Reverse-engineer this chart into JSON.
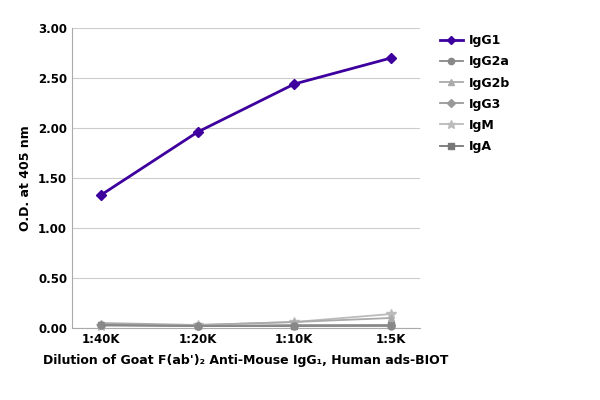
{
  "x_labels": [
    "1:40K",
    "1:20K",
    "1:10K",
    "1:5K"
  ],
  "x_positions": [
    0,
    1,
    2,
    3
  ],
  "series": {
    "IgG1": {
      "values": [
        1.33,
        1.96,
        2.44,
        2.7
      ],
      "color": "#3d009e",
      "marker": "D",
      "markersize": 5,
      "linewidth": 2.0,
      "zorder": 5
    },
    "IgG2a": {
      "values": [
        0.03,
        0.02,
        0.02,
        0.02
      ],
      "color": "#888888",
      "marker": "o",
      "markersize": 5,
      "linewidth": 1.3,
      "zorder": 4
    },
    "IgG2b": {
      "values": [
        0.05,
        0.03,
        0.06,
        0.1
      ],
      "color": "#aaaaaa",
      "marker": "^",
      "markersize": 5,
      "linewidth": 1.3,
      "zorder": 3
    },
    "IgG3": {
      "values": [
        0.03,
        0.02,
        0.03,
        0.03
      ],
      "color": "#999999",
      "marker": "D",
      "markersize": 4,
      "linewidth": 1.3,
      "zorder": 2
    },
    "IgM": {
      "values": [
        0.02,
        0.03,
        0.06,
        0.14
      ],
      "color": "#bbbbbb",
      "marker": "*",
      "markersize": 7,
      "linewidth": 1.3,
      "zorder": 1
    },
    "IgA": {
      "values": [
        0.03,
        0.02,
        0.02,
        0.03
      ],
      "color": "#777777",
      "marker": "s",
      "markersize": 5,
      "linewidth": 1.3,
      "zorder": 0
    }
  },
  "ylabel": "O.D. at 405 nm",
  "xlabel": "Dilution of Goat F(ab')₂ Anti-Mouse IgG₁, Human ads-BIOT",
  "ylim": [
    0.0,
    3.0
  ],
  "yticks": [
    0.0,
    0.5,
    1.0,
    1.5,
    2.0,
    2.5,
    3.0
  ],
  "background_color": "#ffffff",
  "grid_color": "#cccccc",
  "label_fontsize": 9,
  "tick_fontsize": 8.5,
  "legend_fontsize": 9
}
